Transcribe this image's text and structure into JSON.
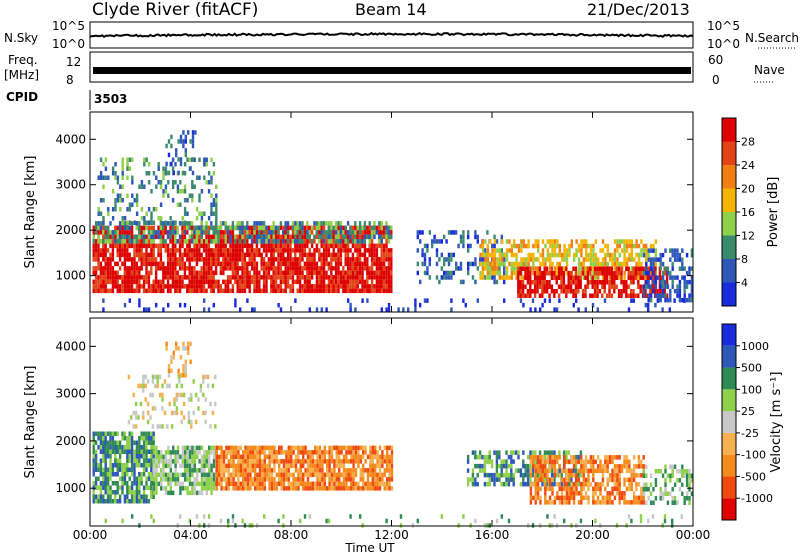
{
  "header": {
    "station": "Clyde River (fitACF)",
    "beam": "Beam 14",
    "date": "21/Dec/2013"
  },
  "summary_panel": {
    "left_labels": {
      "nsky": "N.Sky",
      "freq_line1": "Freq.",
      "freq_line2": "[MHz]",
      "cpid": "CPID"
    },
    "right_labels": {
      "nsearch": "N.Search",
      "nave": "Nave"
    },
    "noise_ticks": {
      "top": "10^5",
      "bottom": "10^0"
    },
    "freq_ticks": {
      "top": "12",
      "bottom": "8"
    },
    "nave_ticks": {
      "top": "60",
      "bottom": "0"
    },
    "cpid_value": "3503"
  },
  "x_axis": {
    "label": "Time UT",
    "ticks": [
      "00:00",
      "04:00",
      "08:00",
      "12:00",
      "16:00",
      "20:00",
      "00:00"
    ]
  },
  "chart_data": [
    {
      "type": "heatmap",
      "parameter": "Power",
      "colorbar_label": "Power [dB]",
      "ylabel": "Slant Range [km]",
      "xlabel": "Time UT",
      "xlim_hours": [
        0,
        24
      ],
      "ylim_km": [
        200,
        4600
      ],
      "yticks": [
        1000,
        2000,
        3000,
        4000
      ],
      "colorbar_ticks": [
        "4",
        "8",
        "12",
        "16",
        "20",
        "24",
        "28"
      ],
      "colorbar_colors": [
        "#1a2bdc",
        "#2e58b8",
        "#3b8a6e",
        "#8fd04a",
        "#f5b400",
        "#f07e12",
        "#e24418",
        "#dd0000"
      ],
      "scatter_regions": [
        {
          "t_start": 0.1,
          "t_end": 12.0,
          "r_min": 700,
          "r_max": 2100,
          "level": 7,
          "density": 0.85
        },
        {
          "t_start": 0.1,
          "t_end": 12.0,
          "r_min": 1800,
          "r_max": 2200,
          "level": 2,
          "density": 0.6
        },
        {
          "t_start": 0.3,
          "t_end": 5.0,
          "r_min": 2200,
          "r_max": 3600,
          "level": 2,
          "density": 0.25
        },
        {
          "t_start": 3.0,
          "t_end": 4.2,
          "r_min": 3300,
          "r_max": 4200,
          "level": 1,
          "density": 0.35
        },
        {
          "t_start": 13.0,
          "t_end": 16.5,
          "r_min": 900,
          "r_max": 2000,
          "level": 1,
          "density": 0.3
        },
        {
          "t_start": 15.5,
          "t_end": 22.5,
          "r_min": 1000,
          "r_max": 1800,
          "level": 4,
          "density": 0.6
        },
        {
          "t_start": 17.0,
          "t_end": 23.0,
          "r_min": 600,
          "r_max": 1200,
          "level": 7,
          "density": 0.7
        },
        {
          "t_start": 22.0,
          "t_end": 24.0,
          "r_min": 500,
          "r_max": 1600,
          "level": 1,
          "density": 0.5
        },
        {
          "t_start": 0.2,
          "t_end": 24.0,
          "r_min": 250,
          "r_max": 500,
          "level": 0,
          "density": 0.12
        }
      ]
    },
    {
      "type": "heatmap",
      "parameter": "Velocity",
      "colorbar_label": "Velocity [m s⁻¹]",
      "ylabel": "Slant Range [km]",
      "xlabel": "Time UT",
      "xlim_hours": [
        0,
        24
      ],
      "ylim_km": [
        200,
        4600
      ],
      "yticks": [
        1000,
        2000,
        3000,
        4000
      ],
      "colorbar_ticks": [
        "-1000",
        "-500",
        "-100",
        "-25",
        "25",
        "100",
        "500",
        "1000"
      ],
      "colorbar_colors": [
        "#e10000",
        "#f04a10",
        "#f58a1c",
        "#f5b050",
        "#c8c8c8",
        "#8fd04a",
        "#2f8a54",
        "#2e58b8",
        "#1a2bdc"
      ],
      "scatter_regions": [
        {
          "t_start": 0.1,
          "t_end": 2.5,
          "r_min": 700,
          "r_max": 2200,
          "level": 6,
          "density": 0.8
        },
        {
          "t_start": 2.5,
          "t_end": 5.0,
          "r_min": 900,
          "r_max": 1900,
          "level": 5,
          "density": 0.8
        },
        {
          "t_start": 5.0,
          "t_end": 12.0,
          "r_min": 1000,
          "r_max": 1900,
          "level": 2,
          "density": 0.85
        },
        {
          "t_start": 3.0,
          "t_end": 4.0,
          "r_min": 3400,
          "r_max": 4100,
          "level": 3,
          "density": 0.3
        },
        {
          "t_start": 1.5,
          "t_end": 5.0,
          "r_min": 2300,
          "r_max": 3400,
          "level": 4,
          "density": 0.2
        },
        {
          "t_start": 15.0,
          "t_end": 19.5,
          "r_min": 1100,
          "r_max": 1800,
          "level": 6,
          "density": 0.6
        },
        {
          "t_start": 17.5,
          "t_end": 22.0,
          "r_min": 700,
          "r_max": 1700,
          "level": 2,
          "density": 0.65
        },
        {
          "t_start": 22.0,
          "t_end": 24.0,
          "r_min": 700,
          "r_max": 1500,
          "level": 5,
          "density": 0.5
        },
        {
          "t_start": 0.2,
          "t_end": 24.0,
          "r_min": 250,
          "r_max": 450,
          "level": 5,
          "density": 0.1
        }
      ]
    }
  ]
}
